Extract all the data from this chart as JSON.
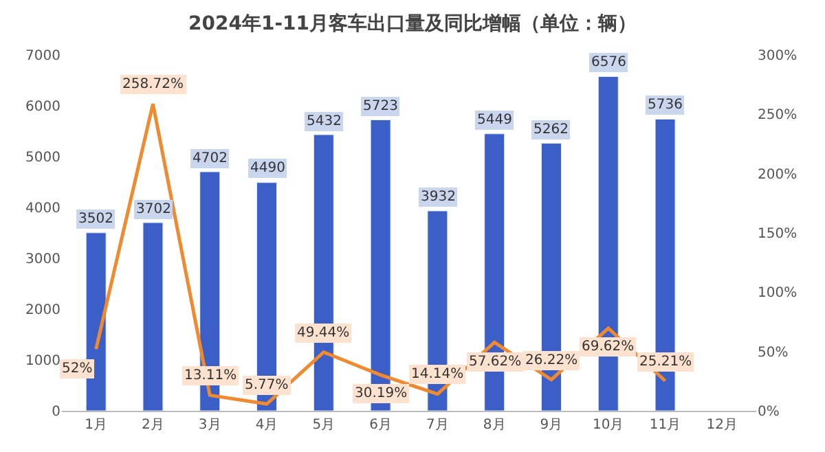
{
  "chart_data": {
    "type": "bar",
    "title": "2024年1-11月客车出口量及同比增幅（单位：辆）",
    "categories": [
      "1月",
      "2月",
      "3月",
      "4月",
      "5月",
      "6月",
      "7月",
      "8月",
      "9月",
      "10月",
      "11月",
      "12月"
    ],
    "series": [
      {
        "color": "#3b5fc6",
        "values": [
          3502,
          3702,
          4702,
          4490,
          5432,
          5723,
          3932,
          5449,
          5262,
          6576,
          5736,
          null
        ],
        "data_labels": true
      },
      {
        "type": "line",
        "axis": "y2",
        "color": "#f08a30",
        "marker": "none",
        "line_style": "solid",
        "values": [
          52,
          258.72,
          13.11,
          5.77,
          49.44,
          30.19,
          14.14,
          57.62,
          26.22,
          69.62,
          25.21,
          null
        ],
        "value_labels": [
          "52%",
          "258.72%",
          "13.11%",
          "5.77%",
          "49.44%",
          "30.19%",
          "14.14%",
          "57.62%",
          "26.22%",
          "69.62%",
          "25.21%",
          null
        ]
      }
    ],
    "ylim": [
      0,
      7000
    ],
    "yticks": [
      0,
      1000,
      2000,
      3000,
      4000,
      5000,
      6000,
      7000
    ],
    "y2lim": [
      0,
      300
    ],
    "y2ticks": [
      {
        "value": 0,
        "label": "0%"
      },
      {
        "value": 50,
        "label": "50%"
      },
      {
        "value": 100,
        "label": "100%"
      },
      {
        "value": 150,
        "label": "150%"
      },
      {
        "value": 200,
        "label": "200%"
      },
      {
        "value": 250,
        "label": "250%"
      },
      {
        "value": 300,
        "label": "300%"
      }
    ],
    "legend": false
  }
}
